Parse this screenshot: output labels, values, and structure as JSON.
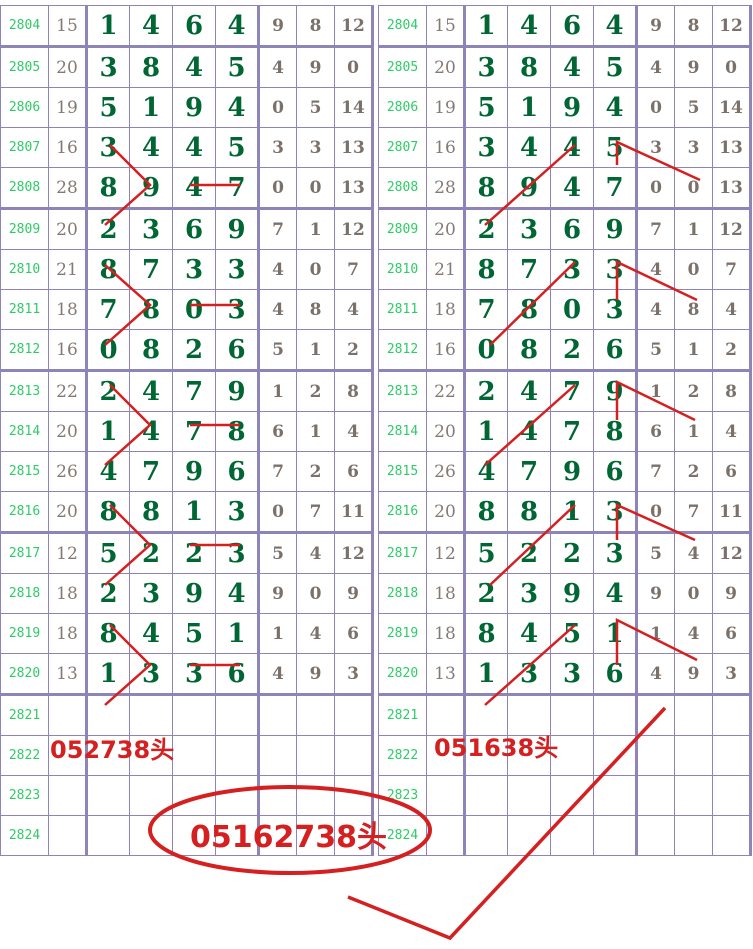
{
  "rows": [
    {
      "period": "2804",
      "sum": "15",
      "digits": [
        "1",
        "4",
        "6",
        "4"
      ],
      "stats": [
        "9",
        "8",
        "12"
      ]
    },
    {
      "period": "2805",
      "sum": "20",
      "digits": [
        "3",
        "8",
        "4",
        "5"
      ],
      "stats": [
        "4",
        "9",
        "0"
      ]
    },
    {
      "period": "2806",
      "sum": "19",
      "digits": [
        "5",
        "1",
        "9",
        "4"
      ],
      "stats": [
        "0",
        "5",
        "14"
      ]
    },
    {
      "period": "2807",
      "sum": "16",
      "digits": [
        "3",
        "4",
        "4",
        "5"
      ],
      "stats": [
        "3",
        "3",
        "13"
      ]
    },
    {
      "period": "2808",
      "sum": "28",
      "digits": [
        "8",
        "9",
        "4",
        "7"
      ],
      "stats": [
        "0",
        "0",
        "13"
      ]
    },
    {
      "period": "2809",
      "sum": "20",
      "digits": [
        "2",
        "3",
        "6",
        "9"
      ],
      "stats": [
        "7",
        "1",
        "12"
      ]
    },
    {
      "period": "2810",
      "sum": "21",
      "digits": [
        "8",
        "7",
        "3",
        "3"
      ],
      "stats": [
        "4",
        "0",
        "7"
      ]
    },
    {
      "period": "2811",
      "sum": "18",
      "digits": [
        "7",
        "8",
        "0",
        "3"
      ],
      "stats": [
        "4",
        "8",
        "4"
      ]
    },
    {
      "period": "2812",
      "sum": "16",
      "digits": [
        "0",
        "8",
        "2",
        "6"
      ],
      "stats": [
        "5",
        "1",
        "2"
      ]
    },
    {
      "period": "2813",
      "sum": "22",
      "digits": [
        "2",
        "4",
        "7",
        "9"
      ],
      "stats": [
        "1",
        "2",
        "8"
      ]
    },
    {
      "period": "2814",
      "sum": "20",
      "digits": [
        "1",
        "4",
        "7",
        "8"
      ],
      "stats": [
        "6",
        "1",
        "4"
      ]
    },
    {
      "period": "2815",
      "sum": "26",
      "digits": [
        "4",
        "7",
        "9",
        "6"
      ],
      "stats": [
        "7",
        "2",
        "6"
      ]
    },
    {
      "period": "2816",
      "sum": "20",
      "digits": [
        "8",
        "8",
        "1",
        "3"
      ],
      "stats": [
        "0",
        "7",
        "11"
      ]
    },
    {
      "period": "2817",
      "sum": "12",
      "digits": [
        "5",
        "2",
        "2",
        "3"
      ],
      "stats": [
        "5",
        "4",
        "12"
      ]
    },
    {
      "period": "2818",
      "sum": "18",
      "digits": [
        "2",
        "3",
        "9",
        "4"
      ],
      "stats": [
        "9",
        "0",
        "9"
      ]
    },
    {
      "period": "2819",
      "sum": "18",
      "digits": [
        "8",
        "4",
        "5",
        "1"
      ],
      "stats": [
        "1",
        "4",
        "6"
      ]
    },
    {
      "period": "2820",
      "sum": "13",
      "digits": [
        "1",
        "3",
        "3",
        "6"
      ],
      "stats": [
        "4",
        "9",
        "3"
      ]
    },
    {
      "period": "2821",
      "sum": "",
      "digits": [
        "",
        "",
        "",
        ""
      ],
      "stats": [
        "",
        "",
        ""
      ]
    },
    {
      "period": "2822",
      "sum": "",
      "digits": [
        "",
        "",
        "",
        ""
      ],
      "stats": [
        "",
        "",
        ""
      ]
    },
    {
      "period": "2823",
      "sum": "",
      "digits": [
        "",
        "",
        "",
        ""
      ],
      "stats": [
        "",
        "",
        ""
      ]
    },
    {
      "period": "2824",
      "sum": "",
      "digits": [
        "",
        "",
        "",
        ""
      ],
      "stats": [
        "",
        "",
        ""
      ]
    }
  ],
  "annotations": {
    "left_pick": "052738头",
    "right_pick": "051638头",
    "combined_pick": "05162738头"
  },
  "colors": {
    "period": "#2ecc66",
    "digit": "#006633",
    "grid": "#8f84b8",
    "annotation": "#d42020"
  }
}
